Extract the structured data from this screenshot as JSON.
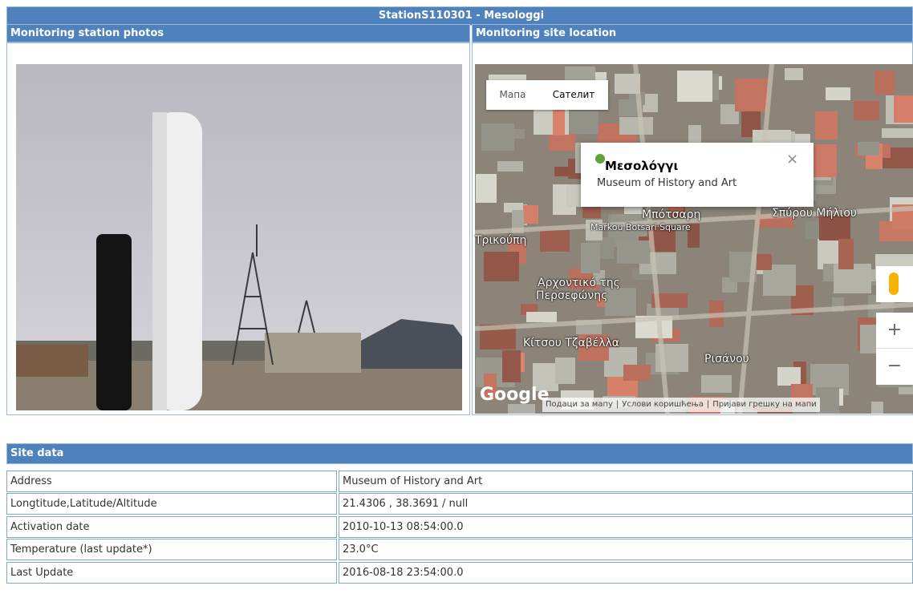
{
  "header": {
    "title": "StationS110301 - Mesologgi"
  },
  "panels": {
    "photos": "Monitoring station photos",
    "location": "Monitoring site location"
  },
  "map": {
    "map_button": "Мапа",
    "satellite_button": "Сателит",
    "popup_title": "Μεσολόγγι",
    "popup_text": "Museum of History and Art",
    "labels": [
      "Markou Botsari Square",
      "Αρχοντικό της",
      "Περσεφώνης",
      "Κίτσου Τζαβέλλα",
      "Ρισάνου",
      "Σπύρου Μήλιου",
      "Τρικούπη",
      "Μπότσαρη"
    ],
    "logo": "Google",
    "footer": [
      "Подаци за мапу",
      "Услови коришћења",
      "Пријави грешку на мапи"
    ]
  },
  "site_data": {
    "title": "Site data",
    "rows": [
      [
        "Address",
        "Museum of History and Art"
      ],
      [
        "Longtitude,Latitude/Altitude",
        "21.4306 , 38.3691 / null"
      ],
      [
        "Activation date",
        "2010-10-13 08:54:00.0"
      ],
      [
        "Temperature (last update*)",
        "23.0°C"
      ],
      [
        "Last Update",
        "2016-08-18 23:54:00.0"
      ]
    ]
  }
}
